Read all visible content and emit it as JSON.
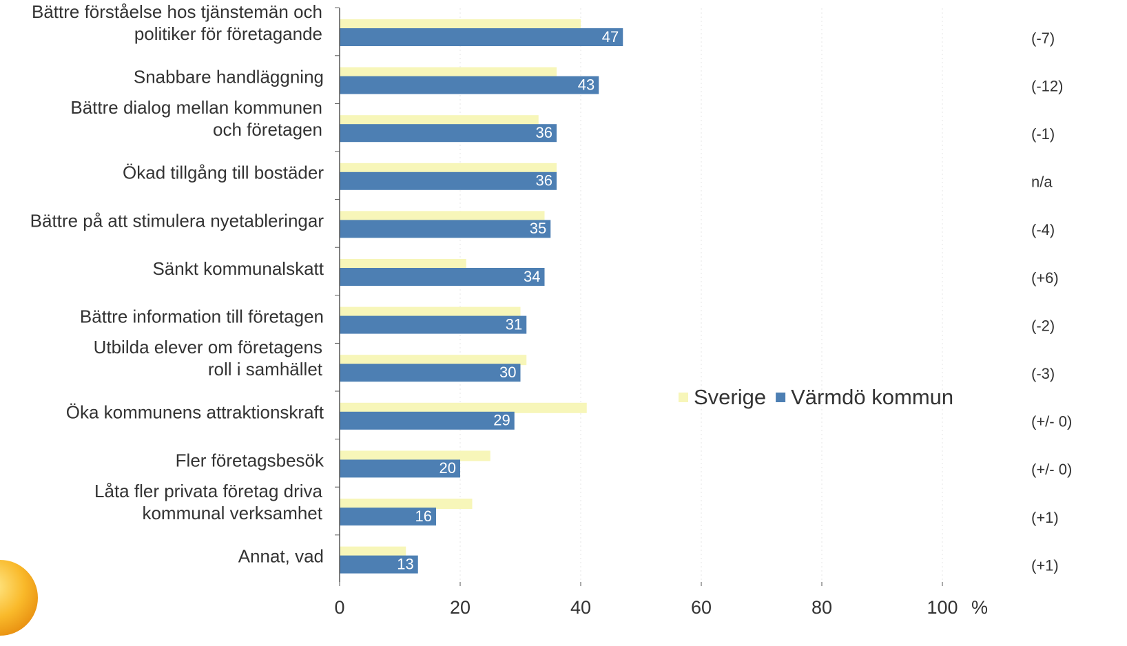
{
  "chart_data": {
    "type": "hbar",
    "categories": [
      "Bättre förståelse hos tjänstemän och\npolitiker för företagande",
      "Snabbare handläggning",
      "Bättre dialog mellan kommunen\noch företagen",
      "Ökad tillgång till bostäder",
      "Bättre på att stimulera nyetableringar",
      "Sänkt kommunalskatt",
      "Bättre information till företagen",
      "Utbilda elever om företagens\nroll i samhället",
      "Öka kommunens attraktionskraft",
      "Fler företagsbesök",
      "Låta fler privata företag driva\nkommunal verksamhet",
      "Annat, vad"
    ],
    "series": [
      {
        "name": "Sverige",
        "color": "#f7f6b9",
        "values": [
          40,
          36,
          33,
          36,
          34,
          21,
          30,
          31,
          41,
          25,
          22,
          11
        ]
      },
      {
        "name": "Värmdö kommun",
        "color": "#4d7fb3",
        "values": [
          47,
          43,
          36,
          36,
          35,
          34,
          31,
          30,
          29,
          20,
          16,
          13
        ]
      }
    ],
    "annotations": [
      "(-7)",
      "(-12)",
      "(-1)",
      "n/a",
      "(-4)",
      "(+6)",
      "(-2)",
      "(-3)",
      "(+/- 0)",
      "(+/- 0)",
      "(+1)",
      "(+1)"
    ],
    "xlim": [
      0,
      100
    ],
    "xticks": [
      0,
      20,
      40,
      60,
      80,
      100
    ],
    "x_unit": "%",
    "grid": true,
    "legend": "right"
  }
}
